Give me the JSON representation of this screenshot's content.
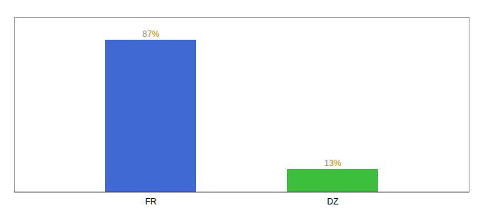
{
  "chart_data": {
    "type": "bar",
    "categories": [
      "FR",
      "DZ"
    ],
    "values": [
      87,
      13
    ],
    "value_labels": [
      "87%",
      "13%"
    ],
    "colors": [
      "#4169d4",
      "#3dbf3d"
    ],
    "ylim": [
      0,
      100
    ],
    "yticks": [],
    "data_labels": true,
    "tick_labels": "x",
    "grid": false
  }
}
